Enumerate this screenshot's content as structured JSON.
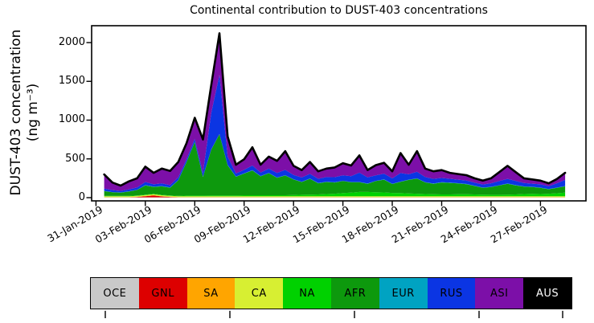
{
  "figure": {
    "title": "Continental contribution to DUST-403 concentrations"
  },
  "y_axis": {
    "label_line1": "DUST-403 concentration",
    "label_line2": "(ng m⁻³)",
    "ticks": [
      "0",
      "500",
      "1000",
      "1500",
      "2000"
    ]
  },
  "x_axis": {
    "tick_labels": [
      "31-Jan-2019",
      "03-Feb-2019",
      "06-Feb-2019",
      "09-Feb-2019",
      "12-Feb-2019",
      "15-Feb-2019",
      "18-Feb-2019",
      "21-Feb-2019",
      "24-Feb-2019",
      "27-Feb-2019"
    ]
  },
  "legend": {
    "entries": [
      {
        "label": "OCE",
        "color": "#c9c9c9",
        "text_color": "#000000"
      },
      {
        "label": "GNL",
        "color": "#dd0000",
        "text_color": "#000000"
      },
      {
        "label": "SA",
        "color": "#ffa500",
        "text_color": "#000000"
      },
      {
        "label": "CA",
        "color": "#d7ef32",
        "text_color": "#000000"
      },
      {
        "label": "NA",
        "color": "#00d100",
        "text_color": "#000000"
      },
      {
        "label": "AFR",
        "color": "#0d990d",
        "text_color": "#000000"
      },
      {
        "label": "EUR",
        "color": "#00a3c2",
        "text_color": "#000000"
      },
      {
        "label": "RUS",
        "color": "#0b35e3",
        "text_color": "#000000"
      },
      {
        "label": "ASI",
        "color": "#7c0fa8",
        "text_color": "#000000"
      },
      {
        "label": "AUS",
        "color": "#000000",
        "text_color": "#ffffff"
      }
    ]
  },
  "chart_data": {
    "type": "area",
    "stacked": true,
    "title": "Continental contribution to DUST-403 concentrations",
    "xlabel": "",
    "ylabel": "DUST-403 concentration (ng m⁻³)",
    "units": "ng m⁻³",
    "ylim": [
      0,
      2220
    ],
    "grid": false,
    "legend_position": "bottom",
    "x_start": "31-Jan-2019 12:00",
    "x_step_hours": 12,
    "n_points": 57,
    "x_tick_labels": [
      "31-Jan-2019",
      "03-Feb-2019",
      "06-Feb-2019",
      "09-Feb-2019",
      "12-Feb-2019",
      "15-Feb-2019",
      "18-Feb-2019",
      "21-Feb-2019",
      "24-Feb-2019",
      "27-Feb-2019"
    ],
    "outline_color": "#000000",
    "series": [
      {
        "name": "OCE",
        "color": "#c9c9c9",
        "constant": 4
      },
      {
        "name": "GNL",
        "color": "#dd0000",
        "values": [
          0,
          0,
          0,
          0,
          5,
          15,
          25,
          12,
          5,
          0,
          0,
          0,
          0,
          0,
          0,
          0,
          0,
          0,
          0,
          0,
          0,
          0,
          0,
          0,
          0,
          0,
          0,
          0,
          0,
          0,
          0,
          0,
          0,
          0,
          0,
          0,
          0,
          0,
          0,
          0,
          0,
          0,
          0,
          0,
          0,
          0,
          0,
          0,
          0,
          0,
          0,
          0,
          0,
          0,
          0,
          0,
          0
        ]
      },
      {
        "name": "SA",
        "color": "#ffa500",
        "constant": 3
      },
      {
        "name": "CA",
        "color": "#d7ef32",
        "constant": 12
      },
      {
        "name": "NA",
        "color": "#00d100",
        "values": [
          5,
          5,
          5,
          5,
          5,
          5,
          5,
          5,
          5,
          5,
          8,
          8,
          8,
          10,
          10,
          10,
          10,
          12,
          12,
          12,
          12,
          12,
          12,
          15,
          18,
          20,
          22,
          28,
          32,
          40,
          45,
          55,
          55,
          50,
          48,
          42,
          40,
          35,
          32,
          28,
          25,
          22,
          22,
          25,
          25,
          22,
          20,
          18,
          18,
          20,
          22,
          28,
          30,
          28,
          32,
          38,
          45
        ]
      },
      {
        "name": "AFR",
        "color": "#0d990d",
        "values": [
          60,
          45,
          40,
          55,
          70,
          120,
          90,
          110,
          100,
          200,
          430,
          690,
          240,
          590,
          790,
          390,
          240,
          280,
          320,
          245,
          285,
          225,
          255,
          200,
          165,
          205,
          145,
          155,
          145,
          155,
          135,
          125,
          105,
          145,
          165,
          115,
          145,
          175,
          195,
          150,
          135,
          155,
          150,
          140,
          130,
          110,
          88,
          100,
          120,
          140,
          118,
          95,
          88,
          80,
          58,
          70,
          82
        ]
      },
      {
        "name": "EUR",
        "color": "#00a3c2",
        "constant": 3
      },
      {
        "name": "RUS",
        "color": "#0b35e3",
        "values": [
          30,
          25,
          20,
          25,
          30,
          40,
          30,
          35,
          30,
          35,
          35,
          40,
          50,
          470,
          760,
          110,
          40,
          45,
          60,
          45,
          55,
          60,
          70,
          55,
          55,
          60,
          55,
          60,
          65,
          70,
          75,
          120,
          80,
          70,
          75,
          70,
          110,
          70,
          85,
          65,
          60,
          55,
          50,
          45,
          45,
          40,
          40,
          45,
          55,
          60,
          55,
          45,
          40,
          42,
          35,
          55,
          80
        ]
      },
      {
        "name": "ASI",
        "color": "#7c0fa8",
        "values": [
          183,
          98,
          68,
          103,
          118,
          198,
          148,
          191,
          183,
          198,
          205,
          270,
          430,
          358,
          538,
          258,
          113,
          136,
          236,
          101,
          156,
          156,
          241,
          118,
          95,
          153,
          96,
          110,
          126,
          158,
          138,
          223,
          94,
          133,
          140,
          91,
          258,
          123,
          266,
          110,
          98,
          101,
          76,
          73,
          68,
          56,
          50,
          65,
          115,
          168,
          113,
          60,
          55,
          48,
          38,
          55,
          91
        ]
      },
      {
        "name": "AUS",
        "color": "#000000",
        "constant": 0
      }
    ]
  }
}
